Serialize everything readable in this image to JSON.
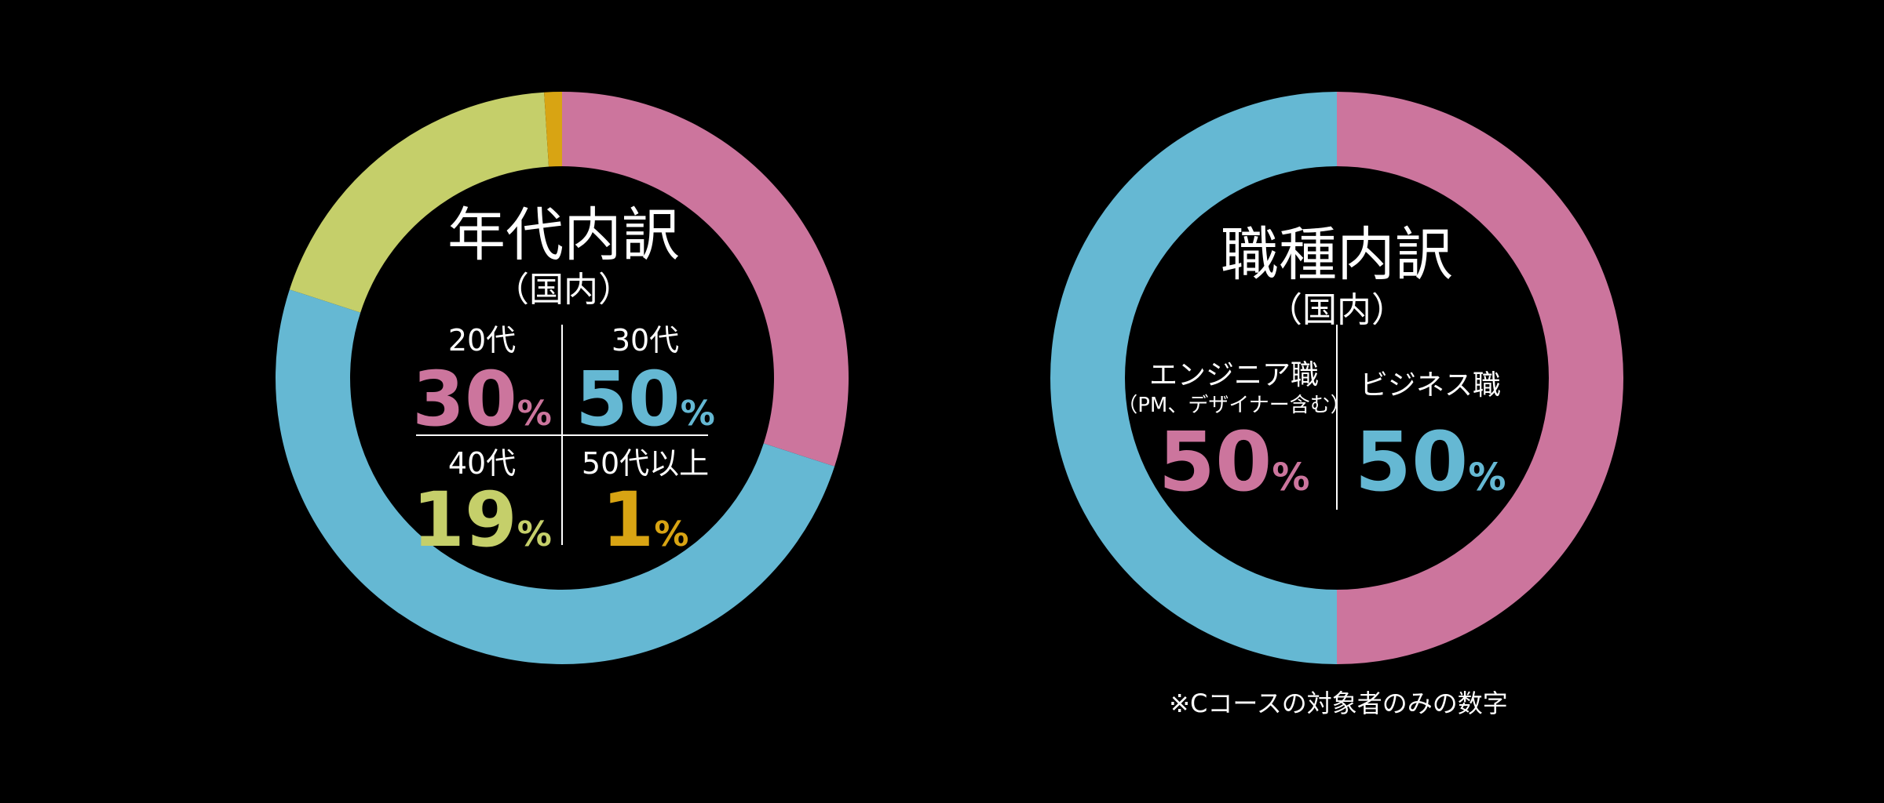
{
  "chart_data": [
    {
      "type": "pie",
      "title": "年代内訳",
      "subtitle": "（国内）",
      "categories": [
        "20代",
        "30代",
        "40代",
        "50代以上"
      ],
      "values": [
        30,
        50,
        19,
        1
      ],
      "unit": "%",
      "colors": [
        "#cc759d",
        "#65b8d3",
        "#c5cf6a",
        "#d8a413"
      ]
    },
    {
      "type": "pie",
      "title": "職種内訳",
      "subtitle": "（国内）",
      "categories": [
        "エンジニア職",
        "ビジネス職"
      ],
      "sublabels": [
        "（PM、デザイナー含む）",
        ""
      ],
      "values": [
        50,
        50
      ],
      "unit": "%",
      "colors": [
        "#cc759d",
        "#65b8d3"
      ]
    }
  ],
  "footnote": "※Cコースの対象者のみの数字"
}
